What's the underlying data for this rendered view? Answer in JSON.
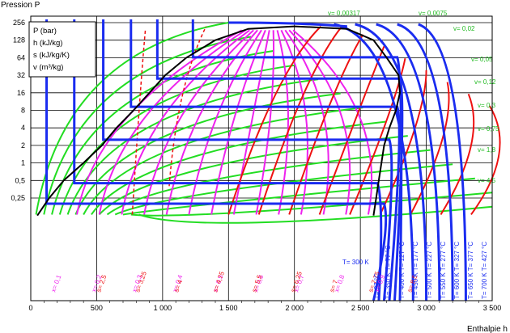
{
  "chart_data": {
    "type": "line",
    "title": "",
    "ylabel": "Pression P",
    "xlabel": "Enthalpie h",
    "y_ticks": [
      "0,25",
      "0,5",
      "1",
      "2",
      "4",
      "8",
      "16",
      "32",
      "64",
      "128",
      "256"
    ],
    "x_ticks": [
      "0",
      "500",
      "1 000",
      "1 500",
      "2 000",
      "2 500",
      "3 000",
      "3 500"
    ],
    "xlim": [
      0,
      3500
    ],
    "ylim": [
      0.125,
      280
    ],
    "log_y": true,
    "grid": true,
    "legend": {
      "placement": "top-left",
      "lines": [
        "P (bar)",
        "h (kJ/kg)",
        "s (kJ/kg/K)",
        "v (m³/kg)"
      ]
    },
    "colors": {
      "saturation": "#000000",
      "isotherm": "#1a2cf0",
      "isochore": "#22dd22",
      "isentrope": "#ee1111",
      "quality": "#ee22ee"
    },
    "isochore_labels": [
      "v= 0,00317",
      "v= 0,0075",
      "v= 0,02",
      "v= 0,05",
      "v= 0,12",
      "v= 0,3",
      "v= 0,75",
      "v= 1,8",
      "v= 4,5"
    ],
    "quality_labels": [
      "x= 0,1",
      "x= 0,2",
      "x= 0,3",
      "x= 0,4",
      "x= 0,5",
      "x= 0,6",
      "x= 0,7",
      "x= 0,8",
      "x= 0,9"
    ],
    "entropy_labels": [
      "s= 2,5",
      "s= 3,25",
      "s= 4",
      "s= 4,75",
      "s= 5,5",
      "s= 6,25",
      "s= 7",
      "s= 7,75",
      "s= 8,5"
    ],
    "temperature_labels": [
      "T= 300 K",
      "T= 350 K  T= 77 °C",
      "T= 400 K  T= 127 °C",
      "T= 450 K  T= 177 °C",
      "T= 500 K  T= 227 °C",
      "T= 550 K  T= 277 °C",
      "T= 600 K  T= 327 °C",
      "T= 650 K  T= 377 °C",
      "T= 700 K  T= 427 °C",
      "T= 27 °C"
    ],
    "saturation_dome": {
      "liquid": [
        [
          50,
          0.125
        ],
        [
          140,
          0.25
        ],
        [
          250,
          0.5
        ],
        [
          400,
          1
        ],
        [
          540,
          2
        ],
        [
          650,
          4
        ],
        [
          780,
          8
        ],
        [
          900,
          16
        ],
        [
          1020,
          32
        ],
        [
          1180,
          64
        ],
        [
          1400,
          128
        ],
        [
          1650,
          200
        ],
        [
          2000,
          221
        ]
      ],
      "vapor": [
        [
          2000,
          221
        ],
        [
          2400,
          200
        ],
        [
          2600,
          128
        ],
        [
          2700,
          64
        ],
        [
          2790,
          32
        ],
        [
          2800,
          16
        ],
        [
          2770,
          8
        ],
        [
          2720,
          4
        ],
        [
          2680,
          2
        ],
        [
          2660,
          1
        ],
        [
          2640,
          0.5
        ],
        [
          2620,
          0.25
        ],
        [
          2600,
          0.125
        ]
      ]
    },
    "isotherm_plateaus": [
      {
        "h_liq": 120,
        "h_vap": 2680,
        "p": 0.2
      },
      {
        "h_liq": 330,
        "h_vap": 2630,
        "p": 0.45
      },
      {
        "h_liq": 550,
        "h_vap": 2720,
        "p": 2.5
      },
      {
        "h_liq": 760,
        "h_vap": 2780,
        "p": 9.2
      },
      {
        "h_liq": 960,
        "h_vap": 2800,
        "p": 28
      },
      {
        "h_liq": 1230,
        "h_vap": 2780,
        "p": 65
      }
    ]
  }
}
